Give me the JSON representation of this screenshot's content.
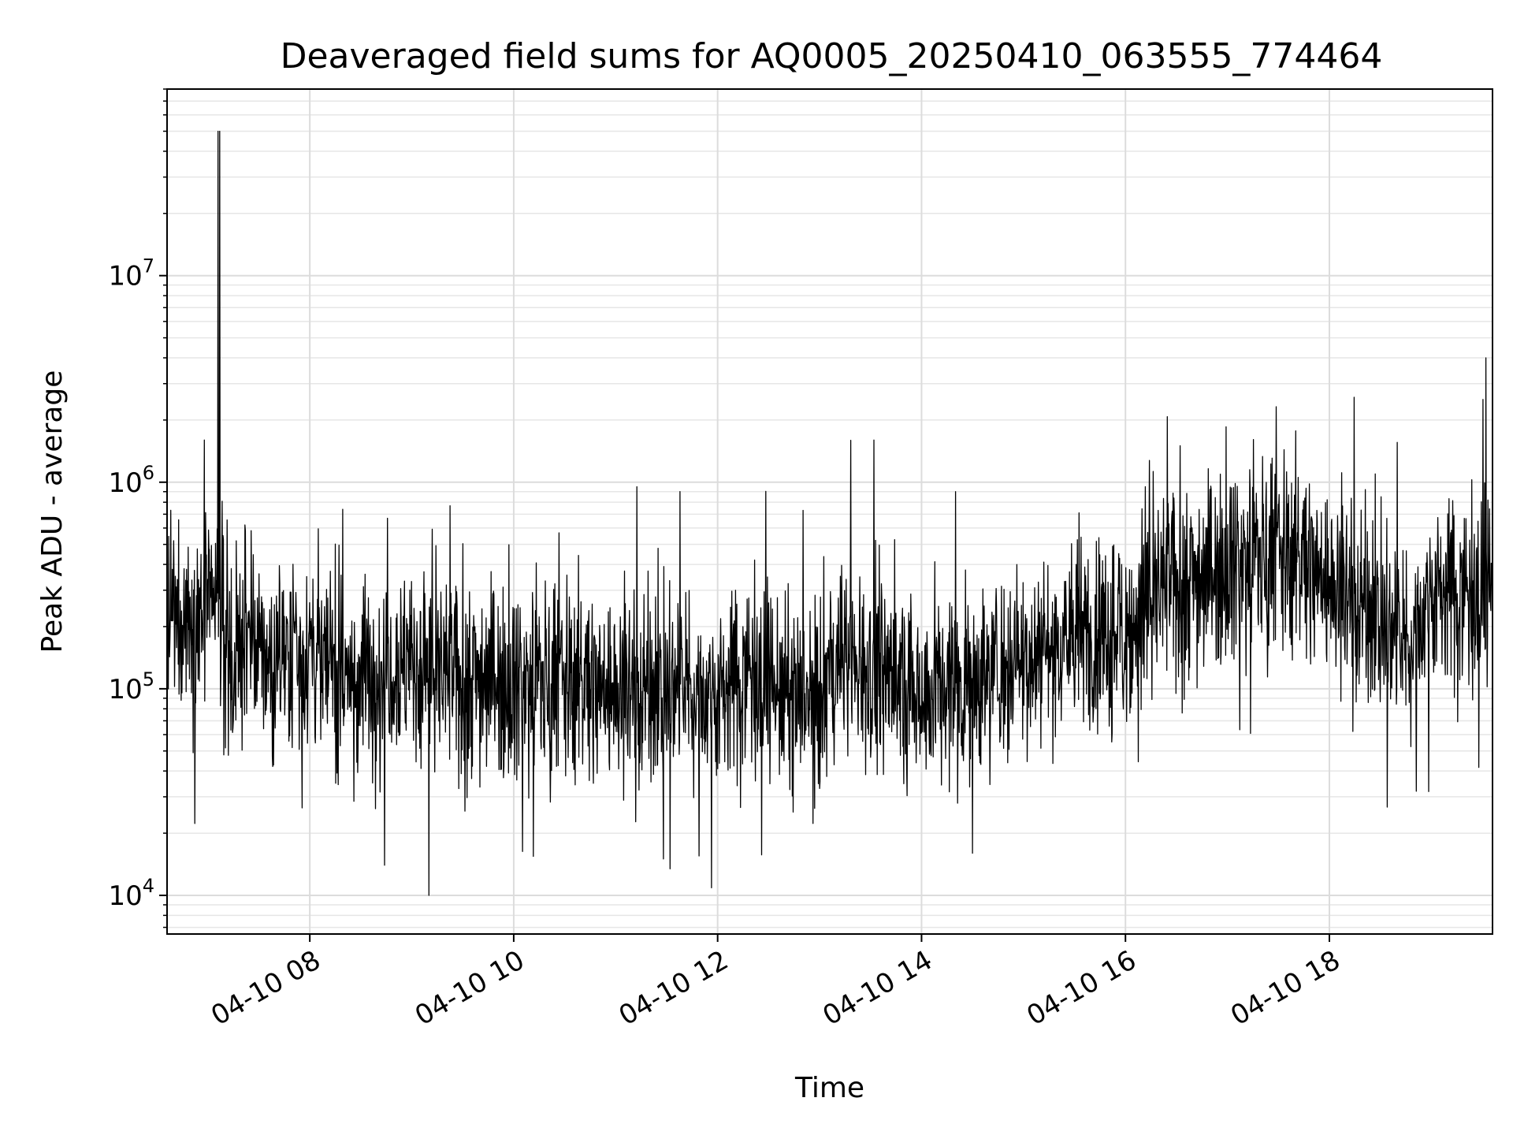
{
  "chart_data": {
    "type": "line",
    "title": "Deaveraged field sums for AQ0005_20250410_063555_774464",
    "xlabel": "Time",
    "ylabel": "Peak ADU - average",
    "yscale": "log",
    "xlim": [
      "2025-04-10 06:36",
      "2025-04-10 19:36"
    ],
    "ylim": [
      6500,
      80000000
    ],
    "grid": "both (major and minor)",
    "legend": "none",
    "x_ticks": [
      {
        "value": "2025-04-10 08:00",
        "label": "04-10 08"
      },
      {
        "value": "2025-04-10 10:00",
        "label": "04-10 10"
      },
      {
        "value": "2025-04-10 12:00",
        "label": "04-10 12"
      },
      {
        "value": "2025-04-10 14:00",
        "label": "04-10 14"
      },
      {
        "value": "2025-04-10 16:00",
        "label": "04-10 16"
      },
      {
        "value": "2025-04-10 18:00",
        "label": "04-10 18"
      }
    ],
    "y_ticks": [
      {
        "value": 10000,
        "base": "10",
        "exp": "4"
      },
      {
        "value": 100000,
        "base": "10",
        "exp": "5"
      },
      {
        "value": 1000000,
        "base": "10",
        "exp": "6"
      },
      {
        "value": 10000000,
        "base": "10",
        "exp": "7"
      }
    ],
    "series": [
      {
        "color": "#000000",
        "x": [
          "2025-04-10 06:36",
          "2025-04-10 06:45",
          "2025-04-10 06:55",
          "2025-04-10 07:05",
          "2025-04-10 07:10",
          "2025-04-10 07:16",
          "2025-04-10 07:20",
          "2025-04-10 07:30",
          "2025-04-10 07:45",
          "2025-04-10 08:00",
          "2025-04-10 08:15",
          "2025-04-10 08:30",
          "2025-04-10 08:45",
          "2025-04-10 09:00",
          "2025-04-10 09:15",
          "2025-04-10 09:30",
          "2025-04-10 09:45",
          "2025-04-10 10:00",
          "2025-04-10 10:30",
          "2025-04-10 11:00",
          "2025-04-10 11:30",
          "2025-04-10 12:00",
          "2025-04-10 12:20",
          "2025-04-10 12:40",
          "2025-04-10 13:00",
          "2025-04-10 13:15",
          "2025-04-10 13:30",
          "2025-04-10 13:45",
          "2025-04-10 14:00",
          "2025-04-10 14:30",
          "2025-04-10 15:00",
          "2025-04-10 15:30",
          "2025-04-10 16:00",
          "2025-04-10 16:20",
          "2025-04-10 16:45",
          "2025-04-10 17:00",
          "2025-04-10 17:30",
          "2025-04-10 17:45",
          "2025-04-10 18:00",
          "2025-04-10 18:30",
          "2025-04-10 18:45",
          "2025-04-10 19:00",
          "2025-04-10 19:30",
          "2025-04-10 19:36"
        ],
        "y": [
          180000,
          230000,
          220000,
          260000,
          200000,
          140000,
          150000,
          150000,
          150000,
          160000,
          120000,
          110000,
          140000,
          130000,
          120000,
          110000,
          120000,
          110000,
          110000,
          100000,
          100000,
          95000,
          130000,
          90000,
          85000,
          150000,
          130000,
          110000,
          100000,
          110000,
          150000,
          180000,
          190000,
          300000,
          360000,
          420000,
          450000,
          420000,
          330000,
          220000,
          150000,
          300000,
          310000,
          320000
        ],
        "noise_decades": 0.45
      }
    ],
    "spikes": [
      {
        "x": "2025-04-10 06:58",
        "y": 1600000
      },
      {
        "x": "2025-04-10 07:06",
        "y": 50000000
      },
      {
        "x": "2025-04-10 07:07",
        "y": 50000000
      },
      {
        "x": "2025-04-10 08:44",
        "y": 14000
      },
      {
        "x": "2025-04-10 09:10",
        "y": 10000
      },
      {
        "x": "2025-04-10 11:28",
        "y": 15000
      },
      {
        "x": "2025-04-10 13:32",
        "y": 1600000
      },
      {
        "x": "2025-04-10 14:20",
        "y": 900000
      },
      {
        "x": "2025-04-10 14:30",
        "y": 16000
      },
      {
        "x": "2025-04-10 19:32",
        "y": 4000000
      }
    ]
  }
}
